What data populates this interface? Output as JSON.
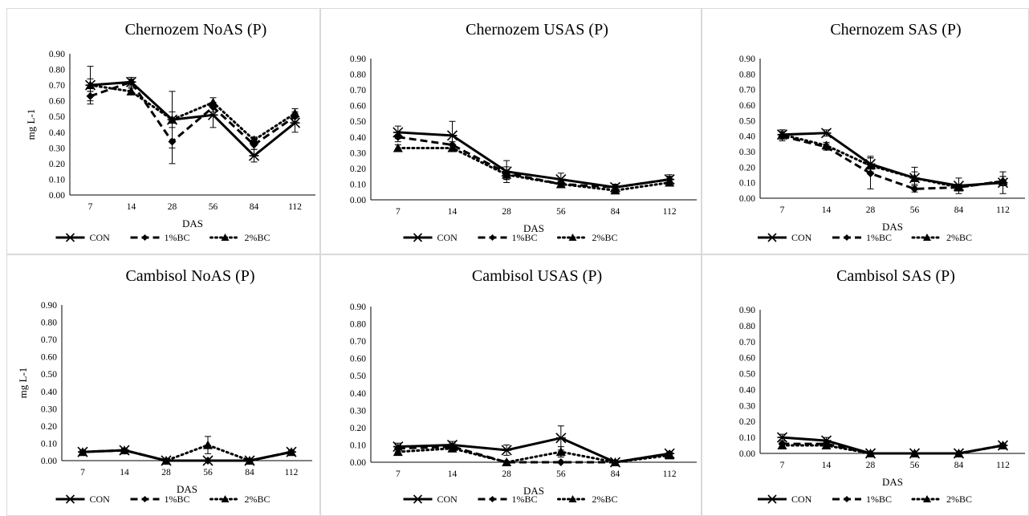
{
  "chart_data": [
    {
      "type": "line",
      "title": "Chernozem NoAS (P)",
      "xlabel": "DAS",
      "ylabel": "mg L-1",
      "ylim": [
        0,
        0.9
      ],
      "yticks": [
        "0.00",
        "0.10",
        "0.20",
        "0.30",
        "0.40",
        "0.50",
        "0.60",
        "0.70",
        "0.80",
        "0.90"
      ],
      "categories": [
        "7",
        "14",
        "28",
        "56",
        "84",
        "112"
      ],
      "legend_position": "bottom",
      "series": [
        {
          "name": "CON",
          "values": [
            0.7,
            0.72,
            0.48,
            0.51,
            0.25,
            0.46
          ],
          "errors": [
            0.12,
            0.03,
            0.05,
            0.08,
            0.04,
            0.06
          ]
        },
        {
          "name": "1%BC",
          "values": [
            0.63,
            0.72,
            0.34,
            0.56,
            0.32,
            0.5
          ],
          "errors": [
            0.03,
            0.02,
            0.14,
            0.03,
            0.03,
            0.03
          ]
        },
        {
          "name": "2%BC",
          "values": [
            0.7,
            0.66,
            0.48,
            0.59,
            0.35,
            0.52
          ],
          "errors": [
            0.04,
            0.02,
            0.18,
            0.03,
            0.02,
            0.03
          ]
        }
      ]
    },
    {
      "type": "line",
      "title": "Chernozem USAS (P)",
      "xlabel": "DAS",
      "ylabel": "",
      "ylim": [
        0,
        0.9
      ],
      "yticks": [
        "0.00",
        "0.10",
        "0.20",
        "0.30",
        "0.40",
        "0.50",
        "0.60",
        "0.70",
        "0.80",
        "0.90"
      ],
      "categories": [
        "7",
        "14",
        "28",
        "56",
        "84",
        "112"
      ],
      "legend_position": "bottom",
      "series": [
        {
          "name": "CON",
          "values": [
            0.43,
            0.41,
            0.18,
            0.13,
            0.08,
            0.13
          ],
          "errors": [
            0.04,
            0.09,
            0.07,
            0.04,
            0.02,
            0.03
          ]
        },
        {
          "name": "1%BC",
          "values": [
            0.4,
            0.35,
            0.17,
            0.1,
            0.08,
            0.13
          ],
          "errors": [
            0.03,
            0.02,
            0.04,
            0.02,
            0.02,
            0.02
          ]
        },
        {
          "name": "2%BC",
          "values": [
            0.33,
            0.33,
            0.16,
            0.1,
            0.06,
            0.11
          ],
          "errors": [
            0.02,
            0.02,
            0.03,
            0.02,
            0.02,
            0.02
          ]
        }
      ]
    },
    {
      "type": "line",
      "title": "Chernozem SAS (P)",
      "xlabel": "DAS",
      "ylabel": "",
      "ylim": [
        0,
        0.9
      ],
      "yticks": [
        "0.00",
        "0.10",
        "0.20",
        "0.30",
        "0.40",
        "0.50",
        "0.60",
        "0.70",
        "0.80",
        "0.90"
      ],
      "categories": [
        "7",
        "14",
        "28",
        "56",
        "84",
        "112"
      ],
      "legend_position": "bottom",
      "series": [
        {
          "name": "CON",
          "values": [
            0.41,
            0.42,
            0.22,
            0.13,
            0.08,
            0.1
          ],
          "errors": [
            0.03,
            0.02,
            0.05,
            0.07,
            0.05,
            0.07
          ]
        },
        {
          "name": "1%BC",
          "values": [
            0.4,
            0.33,
            0.16,
            0.06,
            0.07,
            0.11
          ],
          "errors": [
            0.03,
            0.02,
            0.1,
            0.02,
            0.02,
            0.03
          ]
        },
        {
          "name": "2%BC",
          "values": [
            0.41,
            0.34,
            0.21,
            0.13,
            0.07,
            0.11
          ],
          "errors": [
            0.03,
            0.02,
            0.05,
            0.04,
            0.02,
            0.03
          ]
        }
      ]
    },
    {
      "type": "line",
      "title": "Cambisol NoAS (P)",
      "xlabel": "DAS",
      "ylabel": "mg L-1",
      "ylim": [
        0,
        0.9
      ],
      "yticks": [
        "0.00",
        "0.10",
        "0.20",
        "0.30",
        "0.40",
        "0.50",
        "0.60",
        "0.70",
        "0.80",
        "0.90"
      ],
      "categories": [
        "7",
        "14",
        "28",
        "56",
        "84",
        "112"
      ],
      "legend_position": "bottom",
      "series": [
        {
          "name": "CON",
          "values": [
            0.05,
            0.06,
            0.0,
            0.0,
            0.0,
            0.05
          ],
          "errors": [
            0.01,
            0.01,
            0.0,
            0.0,
            0.0,
            0.01
          ]
        },
        {
          "name": "1%BC",
          "values": [
            0.05,
            0.06,
            0.0,
            0.0,
            0.0,
            0.05
          ],
          "errors": [
            0.01,
            0.01,
            0.0,
            0.0,
            0.0,
            0.01
          ]
        },
        {
          "name": "2%BC",
          "values": [
            0.05,
            0.06,
            0.0,
            0.09,
            0.0,
            0.05
          ],
          "errors": [
            0.01,
            0.01,
            0.0,
            0.05,
            0.0,
            0.01
          ]
        }
      ]
    },
    {
      "type": "line",
      "title": "Cambisol USAS (P)",
      "xlabel": "DAS",
      "ylabel": "",
      "ylim": [
        0,
        0.9
      ],
      "yticks": [
        "0.00",
        "0.10",
        "0.20",
        "0.30",
        "0.40",
        "0.50",
        "0.60",
        "0.70",
        "0.80",
        "0.90"
      ],
      "categories": [
        "7",
        "14",
        "28",
        "56",
        "84",
        "112"
      ],
      "legend_position": "bottom",
      "series": [
        {
          "name": "CON",
          "values": [
            0.09,
            0.1,
            0.07,
            0.14,
            0.0,
            0.05
          ],
          "errors": [
            0.02,
            0.02,
            0.03,
            0.07,
            0.0,
            0.01
          ]
        },
        {
          "name": "1%BC",
          "values": [
            0.08,
            0.09,
            0.0,
            0.0,
            0.0,
            0.05
          ],
          "errors": [
            0.02,
            0.02,
            0.0,
            0.0,
            0.0,
            0.01
          ]
        },
        {
          "name": "2%BC",
          "values": [
            0.06,
            0.08,
            0.0,
            0.06,
            0.0,
            0.04
          ],
          "errors": [
            0.02,
            0.02,
            0.0,
            0.03,
            0.0,
            0.01
          ]
        }
      ]
    },
    {
      "type": "line",
      "title": "Cambisol SAS (P)",
      "xlabel": "DAS",
      "ylabel": "",
      "ylim": [
        0,
        0.9
      ],
      "yticks": [
        "0.00",
        "0.10",
        "0.20",
        "0.30",
        "0.40",
        "0.50",
        "0.60",
        "0.70",
        "0.80",
        "0.90"
      ],
      "categories": [
        "7",
        "14",
        "28",
        "56",
        "84",
        "112"
      ],
      "legend_position": "bottom",
      "series": [
        {
          "name": "CON",
          "values": [
            0.1,
            0.08,
            0.0,
            0.0,
            0.0,
            0.05
          ],
          "errors": [
            0.02,
            0.02,
            0.0,
            0.0,
            0.0,
            0.01
          ]
        },
        {
          "name": "1%BC",
          "values": [
            0.06,
            0.06,
            0.0,
            0.0,
            0.0,
            0.05
          ],
          "errors": [
            0.02,
            0.02,
            0.0,
            0.0,
            0.0,
            0.01
          ]
        },
        {
          "name": "2%BC",
          "values": [
            0.05,
            0.05,
            0.0,
            0.0,
            0.0,
            0.05
          ],
          "errors": [
            0.02,
            0.02,
            0.0,
            0.0,
            0.0,
            0.01
          ]
        }
      ]
    }
  ]
}
